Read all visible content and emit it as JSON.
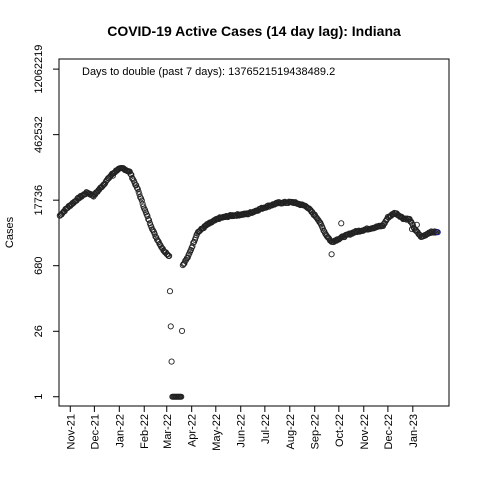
{
  "chart_data": {
    "type": "scatter",
    "title": "COVID-19 Active Cases (14 day lag): Indiana",
    "ylabel": "Cases",
    "y_scale": "log",
    "annotation": "Days to double (past 7 days): 1376521519438489.2",
    "y_ticks": [
      {
        "value": 1,
        "label": "1"
      },
      {
        "value": 26,
        "label": "26"
      },
      {
        "value": 680,
        "label": "680"
      },
      {
        "value": 17736,
        "label": "17736"
      },
      {
        "value": 462532,
        "label": "462532"
      },
      {
        "value": 12062219,
        "label": "12062219"
      }
    ],
    "x_ticks": [
      {
        "date": "2021-11-01",
        "label": "Nov-21"
      },
      {
        "date": "2021-12-01",
        "label": "Dec-21"
      },
      {
        "date": "2022-01-01",
        "label": "Jan-22"
      },
      {
        "date": "2022-02-01",
        "label": "Feb-22"
      },
      {
        "date": "2022-03-01",
        "label": "Mar-22"
      },
      {
        "date": "2022-04-01",
        "label": "Apr-22"
      },
      {
        "date": "2022-05-01",
        "label": "May-22"
      },
      {
        "date": "2022-06-01",
        "label": "Jun-22"
      },
      {
        "date": "2022-07-01",
        "label": "Jul-22"
      },
      {
        "date": "2022-08-01",
        "label": "Aug-22"
      },
      {
        "date": "2022-09-01",
        "label": "Sep-22"
      },
      {
        "date": "2022-10-01",
        "label": "Oct-22"
      },
      {
        "date": "2022-11-01",
        "label": "Nov-22"
      },
      {
        "date": "2022-12-01",
        "label": "Dec-22"
      },
      {
        "date": "2023-01-01",
        "label": "Jan-23"
      }
    ],
    "xlim": [
      "2021-10-18",
      "2023-02-15"
    ],
    "ylim_log10": [
      -0.2,
      7.3
    ],
    "grid": false,
    "point_color": "#222222",
    "last_point_color": "#1a1aa0",
    "series_keypoints": [
      [
        "2021-10-19",
        8200
      ],
      [
        "2021-10-28",
        12000
      ],
      [
        "2021-11-12",
        20000
      ],
      [
        "2021-11-22",
        26000
      ],
      [
        "2021-11-30",
        22000
      ],
      [
        "2021-12-12",
        38000
      ],
      [
        "2021-12-22",
        62000
      ],
      [
        "2021-12-30",
        82000
      ],
      [
        "2022-01-06",
        86000
      ],
      [
        "2022-01-14",
        72000
      ],
      [
        "2022-01-24",
        30000
      ],
      [
        "2022-02-03",
        9500
      ],
      [
        "2022-02-14",
        3200
      ],
      [
        "2022-02-24",
        1550
      ],
      [
        "2022-03-04",
        1100
      ],
      [
        "2022-03-08",
        1.0
      ],
      [
        "2022-03-19",
        1.0
      ],
      [
        "2022-03-21",
        700
      ],
      [
        "2022-03-28",
        1100
      ],
      [
        "2022-04-08",
        3500
      ],
      [
        "2022-04-20",
        5200
      ],
      [
        "2022-05-05",
        7200
      ],
      [
        "2022-05-20",
        8200
      ],
      [
        "2022-06-10",
        9000
      ],
      [
        "2022-07-01",
        12500
      ],
      [
        "2022-07-18",
        15500
      ],
      [
        "2022-08-05",
        16000
      ],
      [
        "2022-08-22",
        13000
      ],
      [
        "2022-09-05",
        7000
      ],
      [
        "2022-09-15",
        3200
      ],
      [
        "2022-09-22",
        2200
      ],
      [
        "2022-10-05",
        2800
      ],
      [
        "2022-10-20",
        3600
      ],
      [
        "2022-11-10",
        4400
      ],
      [
        "2022-11-25",
        5000
      ],
      [
        "2022-12-01",
        7500
      ],
      [
        "2022-12-10",
        9500
      ],
      [
        "2022-12-20",
        7200
      ],
      [
        "2022-12-28",
        6800
      ],
      [
        "2023-01-04",
        4000
      ],
      [
        "2023-01-12",
        2800
      ],
      [
        "2023-01-22",
        3600
      ],
      [
        "2023-02-01",
        3600
      ]
    ],
    "outliers": [
      [
        "2021-12-24",
        60000
      ],
      [
        "2022-05-30",
        8600
      ],
      [
        "2022-09-22",
        1200
      ],
      [
        "2022-10-04",
        5600
      ],
      [
        "2022-12-31",
        4200
      ],
      [
        "2023-01-06",
        5200
      ]
    ]
  }
}
